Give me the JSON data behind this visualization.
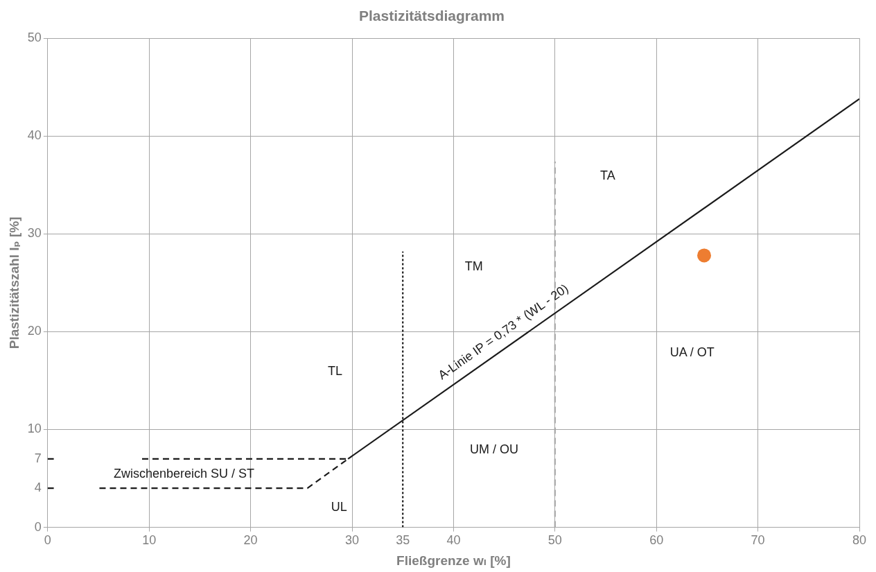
{
  "chart_data": {
    "type": "line",
    "title": "Plastizitätsdiagramm",
    "xlabel": "Fließgrenze wₗ [%]",
    "ylabel": "Plastizitätszahl Iₚ [%]",
    "xlim": [
      0,
      80
    ],
    "xticks": [
      0,
      10,
      20,
      30,
      {
        "value": 35,
        "label": "35"
      },
      40,
      50,
      60,
      70,
      80
    ],
    "ylim": [
      0,
      50
    ],
    "yticks": [
      0,
      {
        "value": 4,
        "label": "4"
      },
      {
        "value": 7,
        "label": "7"
      },
      10,
      20,
      30,
      40,
      50
    ],
    "grid": true,
    "legend": false,
    "series": [
      {
        "name": "A-Linie IP = 0,73 * (WL - 20)",
        "color": "#1a1a1a",
        "line_style": "solid",
        "marker": "none",
        "x": [
          29.6,
          80
        ],
        "values": [
          7,
          43.8
        ]
      },
      {
        "type": "line",
        "color": "#1a1a1a",
        "line_style": "dashed",
        "marker": "none",
        "x": [
          9.3,
          29.6
        ],
        "values": [
          7,
          7
        ]
      },
      {
        "type": "line",
        "color": "#1a1a1a",
        "line_style": "dashed",
        "marker": "none",
        "x": [
          5.1,
          25.6,
          29.6
        ],
        "values": [
          4,
          4,
          7
        ]
      },
      {
        "type": "line",
        "color": "#1a1a1a",
        "line_style": "dashed",
        "marker": "none",
        "x": [
          0,
          0.6
        ],
        "values": [
          7,
          7
        ]
      },
      {
        "type": "line",
        "color": "#1a1a1a",
        "line_style": "dashed",
        "marker": "none",
        "x": [
          0,
          0.6
        ],
        "values": [
          4,
          4
        ]
      },
      {
        "type": "line",
        "color": "#1a1a1a",
        "line_style": "dotted",
        "marker": "none",
        "x": [
          35,
          35
        ],
        "values": [
          0,
          28.2
        ]
      },
      {
        "type": "line",
        "color": "#a6a6a6",
        "line_style": "dashed",
        "marker": "none",
        "x": [
          50,
          50
        ],
        "values": [
          0,
          37.4
        ]
      },
      {
        "type": "scatter",
        "color": "#ed7d31",
        "marker": "circle",
        "x": [
          64.7
        ],
        "values": [
          27.8
        ]
      }
    ],
    "annotations": [
      "TA",
      "TM",
      "TL",
      "UA / OT",
      "UM / OU",
      "UL",
      "Zwischenbereich SU / ST"
    ]
  }
}
